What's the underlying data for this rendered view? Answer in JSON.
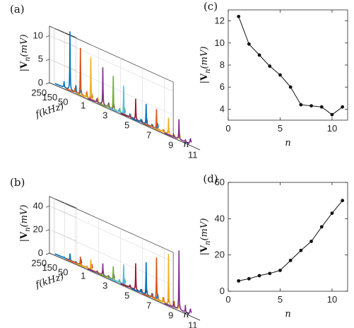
{
  "chart_data": [
    {
      "panel": "(a)",
      "type": "line",
      "subtype": "3d-waterfall",
      "title": "",
      "zlabel": "|V_n|(mV)",
      "ylabel": "f(kHz)",
      "xlabel": "n",
      "zticks": [
        "0",
        "5",
        "10"
      ],
      "yticks": [
        "250",
        "150",
        "50"
      ],
      "xticks": [
        "1",
        "3",
        "5",
        "7",
        "9",
        "11"
      ],
      "n": [
        1,
        2,
        3,
        4,
        5,
        6,
        7,
        8,
        9,
        10,
        11
      ],
      "peak_mV": [
        12.4,
        9.9,
        8.9,
        7.9,
        7.1,
        6.0,
        4.4,
        4.3,
        4.2,
        3.5,
        4.2
      ],
      "colors": [
        "#0072BD",
        "#D95319",
        "#EDB120",
        "#7E2F8E",
        "#77AC30",
        "#4DBEEE",
        "#A2142F",
        "#0072BD",
        "#D95319",
        "#EDB120",
        "#7E2F8E"
      ]
    },
    {
      "panel": "(c)",
      "type": "line",
      "title": "",
      "xlabel": "n",
      "ylabel": "|V_n|(mV)",
      "x": [
        1,
        2,
        3,
        4,
        5,
        6,
        7,
        8,
        9,
        10,
        11
      ],
      "y": [
        12.4,
        9.9,
        8.9,
        7.9,
        7.1,
        6.0,
        4.4,
        4.3,
        4.2,
        3.5,
        4.2
      ],
      "xlim": [
        0,
        11.5
      ],
      "ylim": [
        3,
        13
      ],
      "xticks": [
        0,
        5,
        10
      ],
      "yticks": [
        4,
        6,
        8,
        10,
        12
      ],
      "marker": "dot",
      "grid": false
    },
    {
      "panel": "(b)",
      "type": "line",
      "subtype": "3d-waterfall",
      "title": "",
      "zlabel": "|V_n|(mV)",
      "ylabel": "f(kHz)",
      "xlabel": "n",
      "zticks": [
        "0",
        "20",
        "40"
      ],
      "yticks": [
        "250",
        "150",
        "50"
      ],
      "xticks": [
        "1",
        "3",
        "5",
        "7",
        "9",
        "11"
      ],
      "n": [
        1,
        2,
        3,
        4,
        5,
        6,
        7,
        8,
        9,
        10,
        11
      ],
      "peak_mV": [
        5.7,
        6.9,
        8.6,
        9.8,
        11.5,
        17.0,
        22.5,
        27.5,
        35.5,
        43.0,
        50.0
      ],
      "colors": [
        "#0072BD",
        "#D95319",
        "#EDB120",
        "#7E2F8E",
        "#77AC30",
        "#4DBEEE",
        "#A2142F",
        "#0072BD",
        "#D95319",
        "#EDB120",
        "#7E2F8E"
      ]
    },
    {
      "panel": "(d)",
      "type": "line",
      "title": "",
      "xlabel": "n",
      "ylabel": "|V_n|(mV)",
      "x": [
        1,
        2,
        3,
        4,
        5,
        6,
        7,
        8,
        9,
        10,
        11
      ],
      "y": [
        5.7,
        6.9,
        8.6,
        9.8,
        11.5,
        17.0,
        22.5,
        27.5,
        35.5,
        43.0,
        50.0
      ],
      "xlim": [
        0,
        11.5
      ],
      "ylim": [
        0,
        60
      ],
      "xticks": [
        0,
        5,
        10
      ],
      "yticks": [
        0,
        20,
        40,
        60
      ],
      "marker": "dot",
      "grid": false
    }
  ]
}
